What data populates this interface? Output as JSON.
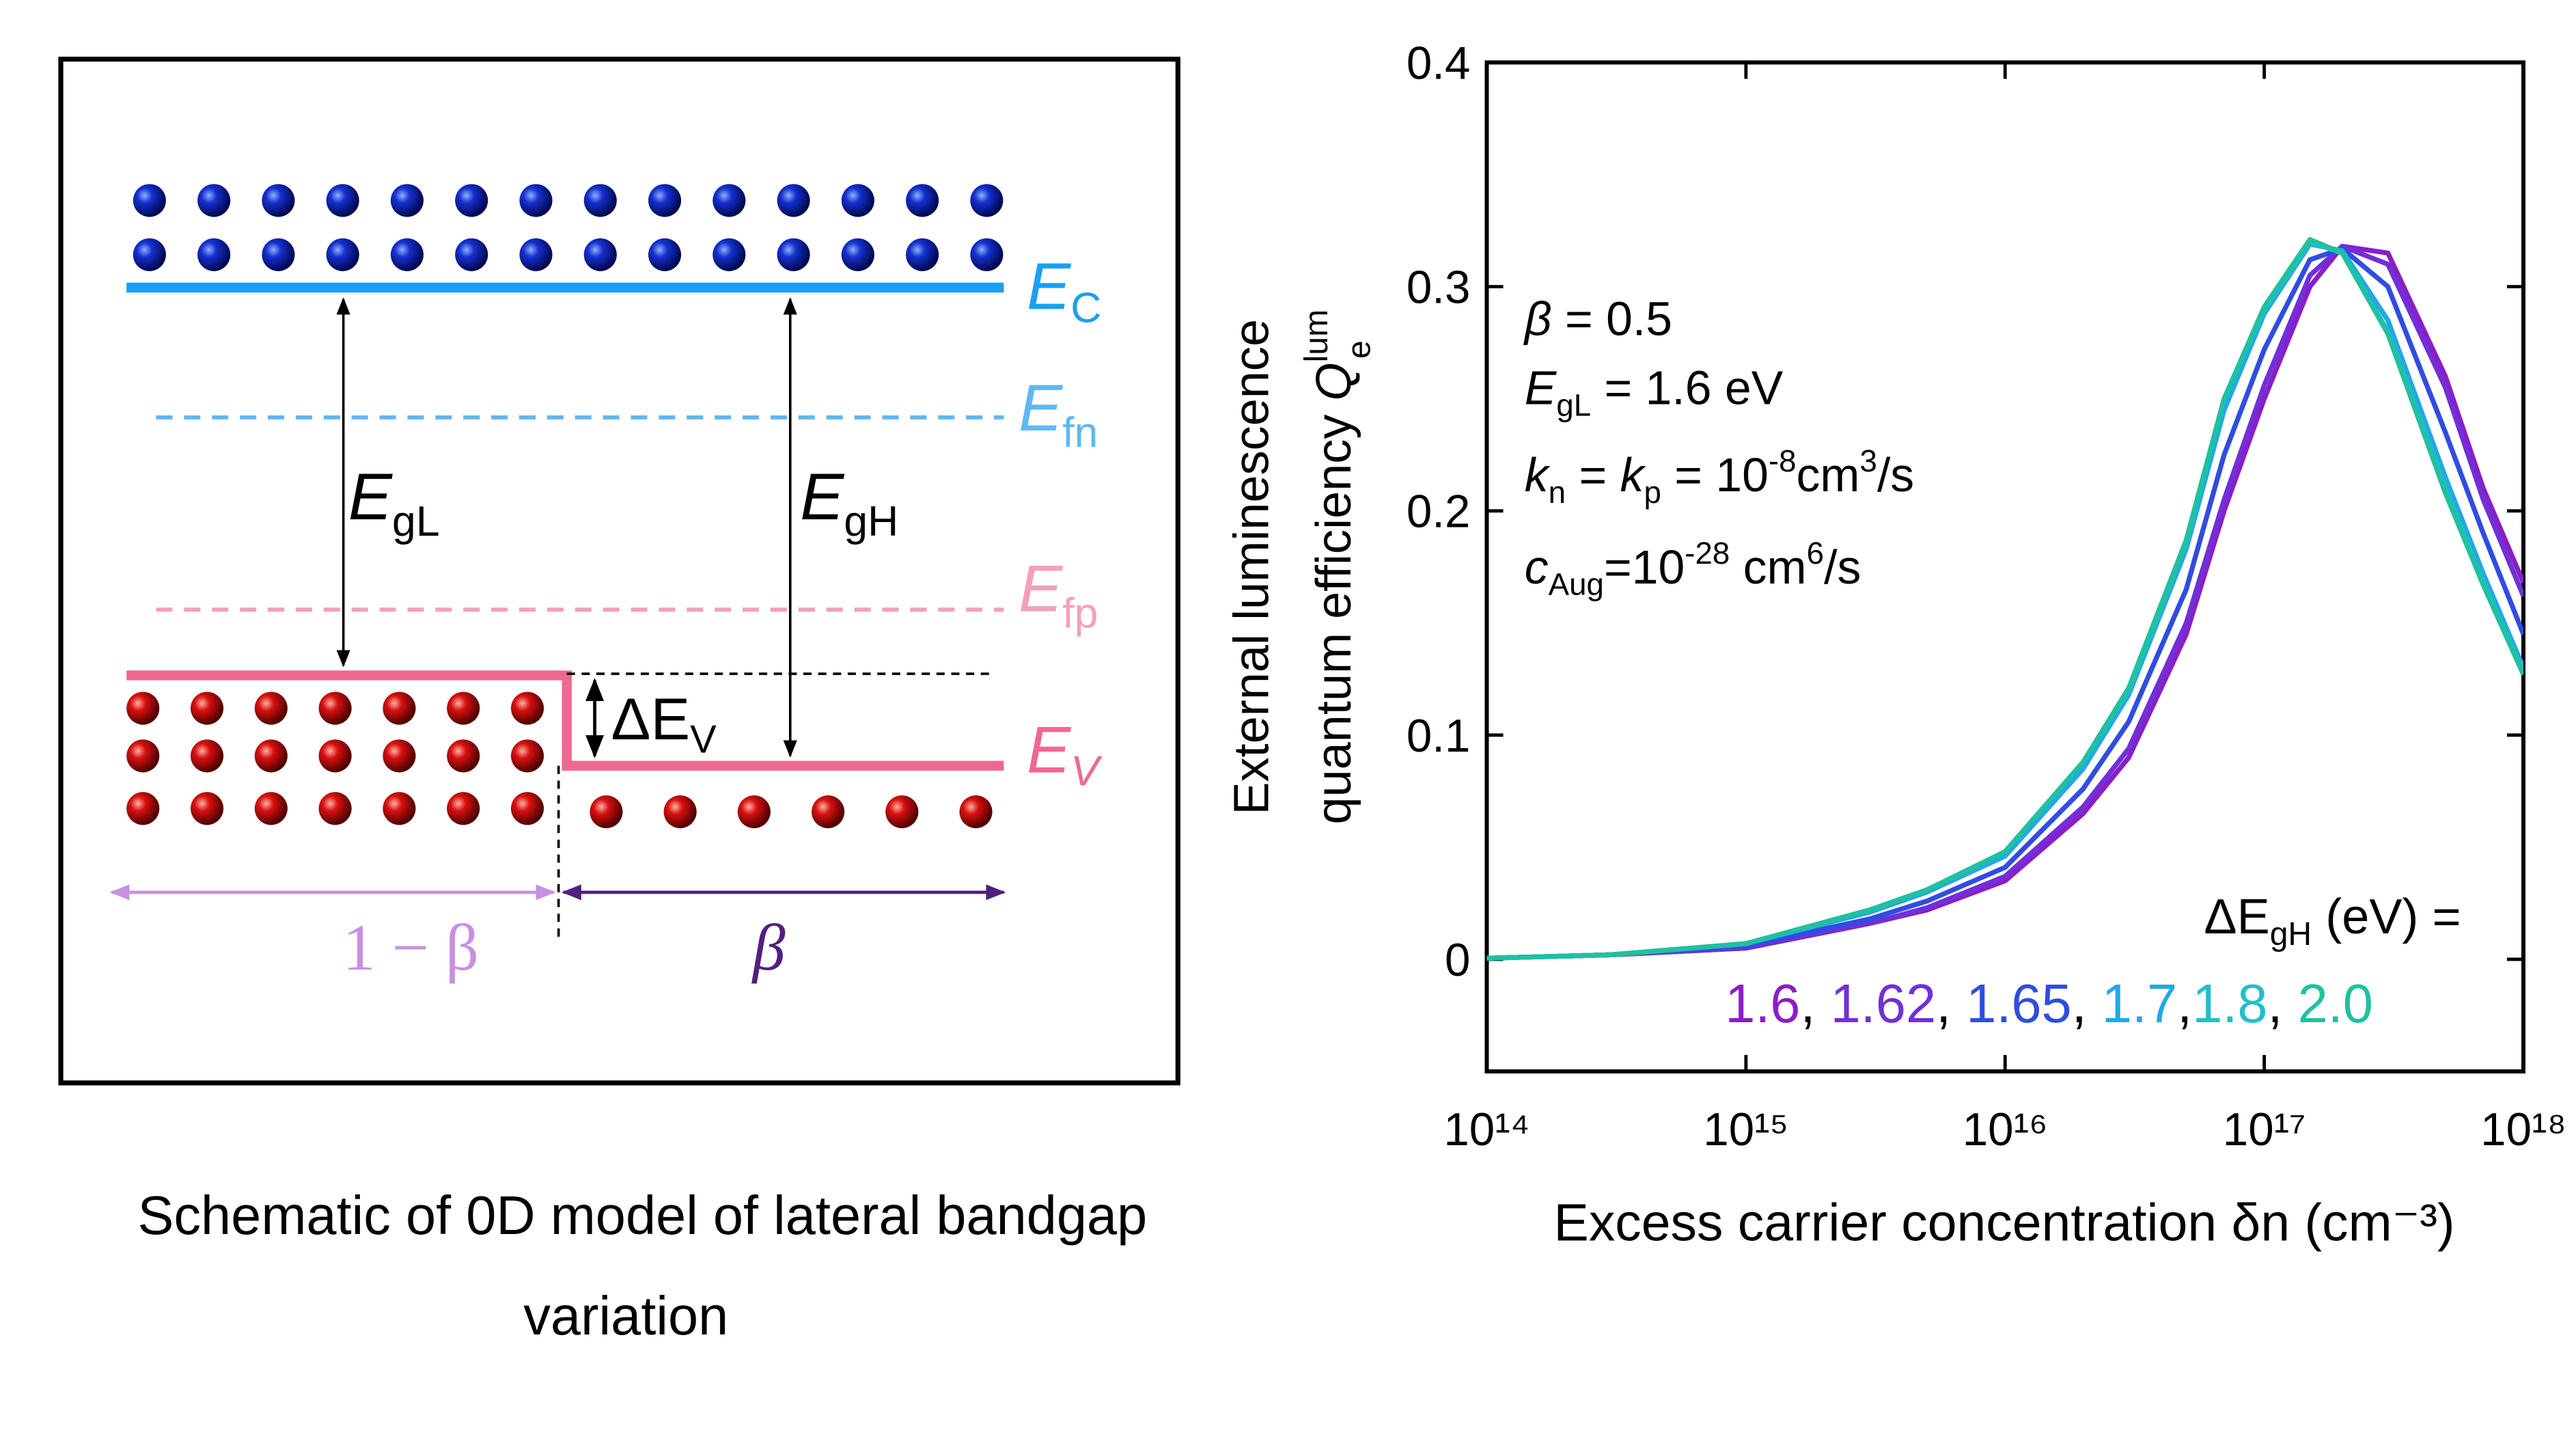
{
  "schematic": {
    "ec": [
      "E",
      "C"
    ],
    "efn": [
      "E",
      "fn"
    ],
    "efp": [
      "E",
      "fp"
    ],
    "ev": [
      "E",
      "V"
    ],
    "egl": [
      "E",
      "gL"
    ],
    "egh": [
      "E",
      "gH"
    ],
    "dev": [
      "ΔE",
      "V"
    ],
    "left_fraction": "1 − β",
    "right_fraction": "β"
  },
  "caption": [
    "Schematic of 0D model of lateral bandgap",
    "variation"
  ],
  "chart_data": {
    "type": "line",
    "xlabel": "Excess carrier concentration δn (cm⁻³)",
    "ylabel": [
      "External luminescence",
      "quantum efficiency ",
      "Q",
      "lum",
      "e"
    ],
    "annotations": [
      [
        "β",
        " = 0.5"
      ],
      [
        "E",
        "gL",
        " = 1.6 eV"
      ],
      [
        "k",
        "n",
        " = ",
        "k",
        "p",
        " = 10",
        "-8",
        "cm",
        "3",
        "/s"
      ],
      [
        "c",
        "Aug",
        "=10",
        "-28",
        " cm",
        "6",
        "/s"
      ]
    ],
    "legend_title": [
      "ΔE",
      "gH",
      " (eV) ="
    ],
    "legend_separators": [
      ", ",
      ", ",
      ", ",
      ",",
      ", "
    ],
    "xscale": "log",
    "xlim": [
      100000000000000.0,
      1e+18
    ],
    "xticks": [
      {
        "value": 100000000000000.0,
        "label": "10¹⁴"
      },
      {
        "value": 1000000000000000.0,
        "label": "10¹⁵"
      },
      {
        "value": 1e+16,
        "label": "10¹⁶"
      },
      {
        "value": 1e+17,
        "label": "10¹⁷"
      },
      {
        "value": 1e+18,
        "label": "10¹⁸"
      }
    ],
    "ylim": [
      -0.05,
      0.4
    ],
    "yticks": [
      0,
      0.1,
      0.2,
      0.3,
      0.4
    ],
    "x": [
      100000000000000.0,
      300000000000000.0,
      1000000000000000.0,
      3000000000000000.0,
      5000000000000000.0,
      1e+16,
      2e+16,
      3e+16,
      5e+16,
      7e+16,
      1e+17,
      1.5e+17,
      2e+17,
      3e+17,
      5e+17,
      7e+17,
      1e+18
    ],
    "series": [
      {
        "name": "1.6",
        "color": "#8a1ec8",
        "values": [
          0.0005,
          0.002,
          0.005,
          0.016,
          0.022,
          0.035,
          0.065,
          0.09,
          0.145,
          0.2,
          0.25,
          0.3,
          0.318,
          0.315,
          0.26,
          0.21,
          0.168
        ]
      },
      {
        "name": "1.62",
        "color": "#7030d8",
        "values": [
          0.0005,
          0.002,
          0.005,
          0.016,
          0.023,
          0.037,
          0.068,
          0.094,
          0.15,
          0.205,
          0.256,
          0.305,
          0.318,
          0.31,
          0.255,
          0.205,
          0.162
        ]
      },
      {
        "name": "1.65",
        "color": "#2f4de0",
        "values": [
          0.0005,
          0.002,
          0.006,
          0.018,
          0.026,
          0.041,
          0.076,
          0.106,
          0.165,
          0.225,
          0.272,
          0.312,
          0.317,
          0.3,
          0.235,
          0.19,
          0.145
        ]
      },
      {
        "name": "1.7",
        "color": "#20a8e8",
        "values": [
          0.0005,
          0.002,
          0.007,
          0.021,
          0.03,
          0.046,
          0.085,
          0.118,
          0.183,
          0.245,
          0.288,
          0.319,
          0.316,
          0.285,
          0.215,
          0.172,
          0.13
        ]
      },
      {
        "name": "1.8",
        "color": "#20c0c8",
        "values": [
          0.0005,
          0.002,
          0.007,
          0.022,
          0.031,
          0.048,
          0.088,
          0.12,
          0.186,
          0.25,
          0.29,
          0.32,
          0.315,
          0.28,
          0.21,
          0.168,
          0.128
        ]
      },
      {
        "name": "2.0",
        "color": "#20c0a0",
        "values": [
          0.0005,
          0.002,
          0.007,
          0.022,
          0.031,
          0.048,
          0.088,
          0.121,
          0.187,
          0.25,
          0.291,
          0.321,
          0.315,
          0.279,
          0.208,
          0.167,
          0.127
        ]
      }
    ]
  }
}
